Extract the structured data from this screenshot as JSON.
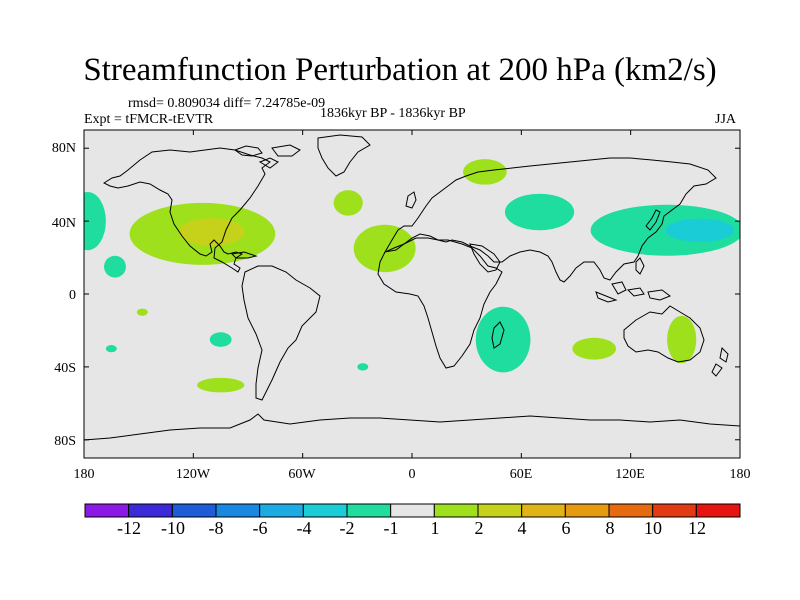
{
  "title": "Streamfunction Perturbation at 200 hPa (km2/s)",
  "stats": "rmsd= 0.809034 diff= 7.24785e-09",
  "experiment": "Expt = tFMCR-tEVTR",
  "period": "1836kyr BP - 1836kyr BP",
  "season": "JJA",
  "axes": {
    "lat_labels": [
      "80N",
      "40N",
      "0",
      "40S",
      "80S"
    ],
    "lon_labels": [
      "180",
      "120W",
      "60W",
      "0",
      "60E",
      "120E",
      "180"
    ]
  },
  "colorbar": {
    "labels": [
      "-12",
      "-10",
      "-8",
      "-6",
      "-4",
      "-2",
      "-1",
      "1",
      "2",
      "4",
      "6",
      "8",
      "10",
      "12"
    ],
    "colors": [
      "#8c1ae6",
      "#3c2ad9",
      "#1d5ed8",
      "#1888e0",
      "#1cabe2",
      "#19ccd6",
      "#1fdc9f",
      "#e6e6e6",
      "#9ee01c",
      "#c6d21a",
      "#e0b414",
      "#e69a10",
      "#e66a10",
      "#e23a12",
      "#e61410"
    ]
  },
  "background_color": "#e6e6e6",
  "chart_data": {
    "type": "filled-contour-map",
    "title": "Streamfunction Perturbation at 200 hPa (km2/s)",
    "units": "km2/s",
    "level": "200 hPa",
    "season": "JJA",
    "lon_range": [
      -180,
      180
    ],
    "lat_range": [
      -90,
      90
    ],
    "contour_levels": [
      -12,
      -10,
      -8,
      -6,
      -4,
      -2,
      -1,
      1,
      2,
      4,
      6,
      8,
      10,
      12
    ],
    "anomalies": [
      {
        "region": "North America / Gulf of Mexico",
        "lon": -115,
        "lat": 33,
        "rx": 40,
        "ry": 17,
        "range": "1 to 2",
        "peak": "2 to 4",
        "peak_lon": -110,
        "peak_lat": 34
      },
      {
        "region": "East Pacific",
        "lon": -178,
        "lat": 40,
        "rx": 10,
        "ry": 16,
        "range": "-2 to -1"
      },
      {
        "region": "Central Pacific",
        "lon": -163,
        "lat": 15,
        "rx": 6,
        "ry": 6,
        "range": "-2 to -1"
      },
      {
        "region": "North Atlantic",
        "lon": -35,
        "lat": 50,
        "rx": 8,
        "ry": 7,
        "range": "1 to 2"
      },
      {
        "region": "Tropical Atlantic",
        "lon": -15,
        "lat": 25,
        "rx": 17,
        "ry": 13,
        "range": "1 to 2"
      },
      {
        "region": "Russia",
        "lon": 40,
        "lat": 67,
        "rx": 12,
        "ry": 7,
        "range": "1 to 2"
      },
      {
        "region": "Central Asia",
        "lon": 70,
        "lat": 45,
        "rx": 19,
        "ry": 10,
        "range": "-2 to -1"
      },
      {
        "region": "Northwest Pacific",
        "lon": 140,
        "lat": 35,
        "rx": 42,
        "ry": 14,
        "range": "-2 to -1",
        "peak": "-4 to -2",
        "peak_lon": 158,
        "peak_lat": 35
      },
      {
        "region": "Southern Africa",
        "lon": 50,
        "lat": -25,
        "rx": 15,
        "ry": 18,
        "range": "-2 to -1"
      },
      {
        "region": "South Indian Ocean",
        "lon": 100,
        "lat": -30,
        "rx": 12,
        "ry": 6,
        "range": "1 to 2"
      },
      {
        "region": "Australia",
        "lon": 148,
        "lat": -25,
        "rx": 8,
        "ry": 13,
        "range": "1 to 2"
      },
      {
        "region": "South Pacific",
        "lon": -105,
        "lat": -25,
        "rx": 6,
        "ry": 4,
        "range": "-2 to -1"
      },
      {
        "region": "Southeast Pacific",
        "lon": -105,
        "lat": -50,
        "rx": 13,
        "ry": 4,
        "range": "1 to 2"
      },
      {
        "region": "Southwest Pacific",
        "lon": -148,
        "lat": -10,
        "rx": 3,
        "ry": 2,
        "range": "1 to 2"
      },
      {
        "region": "South Pacific west",
        "lon": -165,
        "lat": -30,
        "rx": 3,
        "ry": 2,
        "range": "-2 to -1"
      },
      {
        "region": "South Atlantic",
        "lon": -27,
        "lat": -40,
        "rx": 3,
        "ry": 2,
        "range": "-2 to -1"
      }
    ]
  }
}
